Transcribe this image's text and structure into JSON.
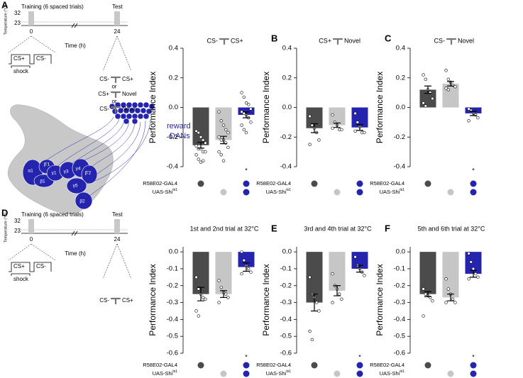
{
  "panel_letters": [
    "A",
    "B",
    "C",
    "D",
    "E",
    "F"
  ],
  "schematic_A": {
    "ylabel": "Temperature (°C)",
    "temps": [
      "32",
      "23"
    ],
    "training": "Training (6 spaced trials)",
    "test": "Test",
    "time_ticks": [
      "0",
      "24"
    ],
    "xlabel": "Time (h)",
    "protocol": [
      "CS+",
      "CS-"
    ],
    "shock": "shock",
    "test_options": [
      [
        "CS-",
        "CS+"
      ],
      [
        "CS+",
        "Novel"
      ],
      [
        "CS-",
        "Novel"
      ]
    ],
    "separator": "or"
  },
  "schematic_D": {
    "ylabel": "Temperature (°C)",
    "temps": [
      "32",
      "23"
    ],
    "training": "Training (6 spaced trials)",
    "test": "Test",
    "time_ticks": [
      "0",
      "24"
    ],
    "xlabel": "Time (h)",
    "protocol": [
      "CS+",
      "CS-"
    ],
    "shock": "shock",
    "test_options": [
      [
        "CS-",
        "CS+"
      ]
    ]
  },
  "brain": {
    "lobes": [
      "α1",
      "β1",
      "β'1",
      "γ1",
      "γ3",
      "γ4",
      "β'2",
      "γ5",
      "β2"
    ],
    "label": [
      "reward",
      "DANs"
    ]
  },
  "chart_data": [
    {
      "type": "bar",
      "title_parts": [
        "CS-",
        "CS+"
      ],
      "ylabel": "Performance Index",
      "categories": [
        null,
        null,
        null
      ],
      "colors": [
        "#4b4b4b",
        "#c6c6c6",
        "#2424ae"
      ],
      "ylim": [
        -0.4,
        0.4
      ],
      "yticks": [
        0.4,
        0.2,
        {
          "value": 0,
          "label": "0.0"
        },
        -0.2,
        -0.4
      ],
      "values": [
        -0.255,
        -0.22,
        -0.05
      ],
      "errors": [
        0.02,
        0.025,
        0.02
      ],
      "points": [
        [
          -0.16,
          -0.17,
          -0.2,
          -0.22,
          -0.24,
          -0.26,
          -0.28,
          -0.28,
          -0.3,
          -0.3,
          -0.32,
          -0.35,
          -0.37,
          -0.36
        ],
        [
          -0.03,
          -0.09,
          -0.12,
          -0.15,
          -0.17,
          -0.2,
          -0.22,
          -0.22,
          -0.24,
          -0.27,
          -0.3,
          -0.32,
          -0.36
        ],
        [
          0.1,
          0.07,
          0.03,
          0.02,
          -0.01,
          -0.03,
          -0.04,
          -0.05,
          -0.07,
          -0.1,
          -0.12,
          -0.15,
          -0.17
        ]
      ],
      "significance": [
        null,
        null,
        "*"
      ],
      "genotype_rows": [
        {
          "label": "R58E02-GAL4",
          "present": [
            true,
            false,
            true
          ]
        },
        {
          "label": "UAS-Shi",
          "superscript": "ts1",
          "present": [
            false,
            true,
            true
          ]
        }
      ]
    },
    {
      "type": "bar",
      "title_parts": [
        "CS+",
        "Novel"
      ],
      "ylabel": "Performance Index",
      "categories": [
        null,
        null,
        null
      ],
      "colors": [
        "#4b4b4b",
        "#c6c6c6",
        "#2424ae"
      ],
      "ylim": [
        -0.4,
        0.4
      ],
      "yticks": [
        0.4,
        0.2,
        {
          "value": 0,
          "label": "0.0"
        },
        -0.2,
        -0.4
      ],
      "values": [
        -0.14,
        -0.12,
        -0.135
      ],
      "errors": [
        0.03,
        0.015,
        0.02
      ],
      "points": [
        [
          -0.06,
          -0.12,
          -0.14,
          -0.17,
          -0.22,
          -0.25
        ],
        [
          -0.05,
          -0.1,
          -0.12,
          -0.15,
          -0.15,
          -0.14
        ],
        [
          -0.04,
          -0.1,
          -0.13,
          -0.17,
          -0.17,
          -0.16
        ]
      ],
      "significance": [
        null,
        null,
        null
      ],
      "genotype_rows": [
        {
          "label": "R58E02-GAL4",
          "present": [
            true,
            false,
            true
          ]
        },
        {
          "label": "UAS-Shi",
          "superscript": "ts1",
          "present": [
            false,
            true,
            true
          ]
        }
      ]
    },
    {
      "type": "bar",
      "title_parts": [
        "CS-",
        "Novel"
      ],
      "ylabel": "Performance Index",
      "categories": [
        null,
        null,
        null
      ],
      "colors": [
        "#4b4b4b",
        "#c6c6c6",
        "#2424ae"
      ],
      "ylim": [
        -0.4,
        0.4
      ],
      "yticks": [
        0.4,
        0.2,
        {
          "value": 0,
          "label": "0.0"
        },
        -0.2,
        -0.4
      ],
      "values": [
        0.12,
        0.16,
        -0.04
      ],
      "errors": [
        0.025,
        0.015,
        0.015
      ],
      "points": [
        [
          0.22,
          0.19,
          0.12,
          0.1,
          0.06,
          0.03,
          0.01
        ],
        [
          0.25,
          0.19,
          0.17,
          0.15,
          0.14,
          0.13,
          0.12
        ],
        [
          -0.01,
          -0.02,
          -0.04,
          -0.05,
          -0.07,
          -0.09
        ]
      ],
      "significance": [
        null,
        null,
        "*"
      ],
      "genotype_rows": [
        {
          "label": "R58E02-GAL4",
          "present": [
            true,
            false,
            true
          ]
        },
        {
          "label": "UAS-Shi",
          "superscript": "ts1",
          "present": [
            false,
            true,
            true
          ]
        }
      ]
    },
    {
      "type": "bar",
      "title": "1st and 2nd trial at 32°C",
      "ylabel": "Performance Index",
      "categories": [
        null,
        null,
        null
      ],
      "colors": [
        "#4b4b4b",
        "#c6c6c6",
        "#2424ae"
      ],
      "ylim": [
        -0.6,
        0.03
      ],
      "yticks": [
        {
          "value": 0,
          "label": "0.0"
        },
        -0.1,
        -0.2,
        -0.3,
        -0.4,
        -0.5,
        -0.6
      ],
      "values": [
        -0.25,
        -0.25,
        -0.09
      ],
      "errors": [
        0.04,
        0.02,
        0.025
      ],
      "points": [
        [
          -0.15,
          -0.22,
          -0.25,
          -0.27,
          -0.28,
          -0.35,
          -0.38
        ],
        [
          -0.17,
          -0.21,
          -0.24,
          -0.25,
          -0.27,
          -0.3
        ],
        [
          0.0,
          -0.05,
          -0.08,
          -0.1,
          -0.12,
          -0.13
        ]
      ],
      "significance": [
        null,
        null,
        "*"
      ],
      "genotype_rows": [
        {
          "label": "R58E02-GAL4",
          "present": [
            true,
            false,
            true
          ]
        },
        {
          "label": "UAS-Shi",
          "superscript": "ts1",
          "present": [
            false,
            true,
            true
          ]
        }
      ]
    },
    {
      "type": "bar",
      "title": "3rd and 4th trial at 32°C",
      "ylabel": "Performance Index",
      "categories": [
        null,
        null,
        null
      ],
      "colors": [
        "#4b4b4b",
        "#c6c6c6",
        "#2424ae"
      ],
      "ylim": [
        -0.6,
        0.03
      ],
      "yticks": [
        {
          "value": 0,
          "label": "0.0"
        },
        -0.1,
        -0.2,
        -0.3,
        -0.4,
        -0.5,
        -0.6
      ],
      "values": [
        -0.3,
        -0.23,
        -0.1
      ],
      "errors": [
        0.05,
        0.03,
        0.02
      ],
      "points": [
        [
          -0.15,
          -0.25,
          -0.27,
          -0.3,
          -0.35,
          -0.47,
          -0.52
        ],
        [
          -0.13,
          -0.2,
          -0.22,
          -0.25,
          -0.28,
          -0.3
        ],
        [
          -0.03,
          -0.08,
          -0.1,
          -0.12,
          -0.14
        ]
      ],
      "significance": [
        null,
        null,
        "*"
      ],
      "genotype_rows": [
        {
          "label": "R58E02-GAL4",
          "present": [
            true,
            false,
            true
          ]
        },
        {
          "label": "UAS-Shi",
          "superscript": "ts1",
          "present": [
            false,
            true,
            true
          ]
        }
      ]
    },
    {
      "type": "bar",
      "title": "5th and 6th trial at 32°C",
      "ylabel": "Performance Index",
      "categories": [
        null,
        null,
        null
      ],
      "colors": [
        "#4b4b4b",
        "#c6c6c6",
        "#2424ae"
      ],
      "ylim": [
        -0.6,
        0.03
      ],
      "yticks": [
        {
          "value": 0,
          "label": "0.0"
        },
        -0.1,
        -0.2,
        -0.3,
        -0.4,
        -0.5,
        -0.6
      ],
      "values": [
        -0.25,
        -0.27,
        -0.13
      ],
      "errors": [
        0.015,
        0.02,
        0.02
      ],
      "points": [
        [
          -0.22,
          -0.25,
          -0.26,
          -0.27,
          -0.29,
          -0.38
        ],
        [
          -0.16,
          -0.22,
          -0.25,
          -0.28,
          -0.3,
          -0.3
        ],
        [
          -0.01,
          -0.06,
          -0.1,
          -0.13,
          -0.15,
          -0.16
        ]
      ],
      "significance": [
        null,
        null,
        "*"
      ],
      "genotype_rows": [
        {
          "label": "R58E02-GAL4",
          "present": [
            true,
            false,
            true
          ]
        },
        {
          "label": "UAS-Shi",
          "superscript": "ts1",
          "present": [
            false,
            true,
            true
          ]
        }
      ]
    }
  ]
}
